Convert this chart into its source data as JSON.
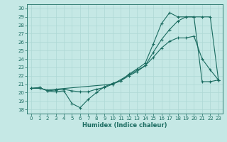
{
  "xlabel": "Humidex (Indice chaleur)",
  "bg_color": "#c5e8e5",
  "line_color": "#1a6b60",
  "grid_color": "#aed8d4",
  "xlim": [
    -0.5,
    23.5
  ],
  "ylim": [
    17.5,
    30.5
  ],
  "xticks": [
    0,
    1,
    2,
    3,
    4,
    5,
    6,
    7,
    8,
    9,
    10,
    11,
    12,
    13,
    14,
    15,
    16,
    17,
    18,
    19,
    20,
    21,
    22,
    23
  ],
  "yticks": [
    18,
    19,
    20,
    21,
    22,
    23,
    24,
    25,
    26,
    27,
    28,
    29,
    30
  ],
  "line1_x": [
    0,
    1,
    2,
    3,
    4,
    5,
    6,
    7,
    8,
    9,
    10,
    11,
    12,
    13,
    14,
    15,
    16,
    17,
    18,
    19,
    20,
    21,
    22,
    23
  ],
  "line1_y": [
    20.5,
    20.6,
    20.2,
    20.1,
    20.2,
    18.7,
    18.2,
    19.2,
    20.0,
    20.7,
    21.1,
    21.4,
    22.2,
    22.8,
    23.5,
    25.8,
    28.2,
    29.5,
    29.0,
    29.0,
    29.0,
    21.3,
    21.3,
    21.5
  ],
  "line2_x": [
    0,
    1,
    2,
    3,
    4,
    5,
    6,
    7,
    8,
    9,
    10,
    11,
    12,
    13,
    14,
    15,
    16,
    17,
    18,
    19,
    20,
    21,
    22,
    23
  ],
  "line2_y": [
    20.5,
    20.6,
    20.2,
    20.3,
    20.4,
    20.2,
    20.1,
    20.1,
    20.4,
    20.6,
    21.0,
    21.4,
    22.0,
    22.5,
    23.2,
    24.2,
    25.3,
    26.1,
    26.5,
    26.5,
    26.7,
    24.0,
    22.7,
    21.5
  ],
  "line3_x": [
    0,
    1,
    2,
    3,
    10,
    14,
    15,
    16,
    17,
    18,
    19,
    20,
    21,
    22,
    23
  ],
  "line3_y": [
    20.5,
    20.5,
    20.3,
    20.4,
    21.0,
    23.2,
    24.8,
    26.3,
    27.5,
    28.5,
    29.0,
    29.0,
    29.0,
    29.0,
    21.5
  ]
}
